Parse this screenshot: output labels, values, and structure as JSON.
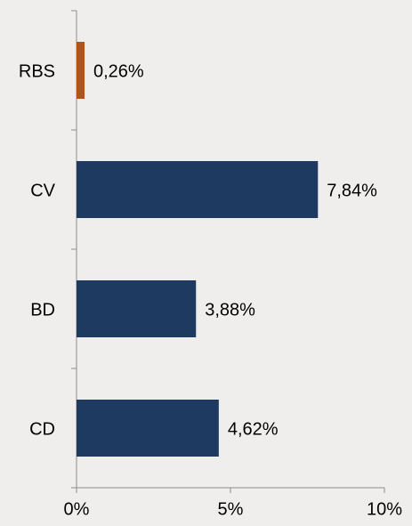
{
  "chart_data": {
    "type": "hbar",
    "categories": [
      "RBS",
      "CV",
      "BD",
      "CD"
    ],
    "values": [
      0.26,
      7.84,
      3.88,
      4.62
    ],
    "value_labels": [
      "0,26%",
      "7,84%",
      "3,88%",
      "4,62%"
    ],
    "colors": [
      "#b0541c",
      "#1f3a60",
      "#1f3a60",
      "#1f3a60"
    ],
    "xlim": [
      0,
      10
    ],
    "xticks": [
      {
        "value": 0,
        "label": "0%"
      },
      {
        "value": 5,
        "label": "5%"
      },
      {
        "value": 10,
        "label": "10%"
      }
    ]
  }
}
